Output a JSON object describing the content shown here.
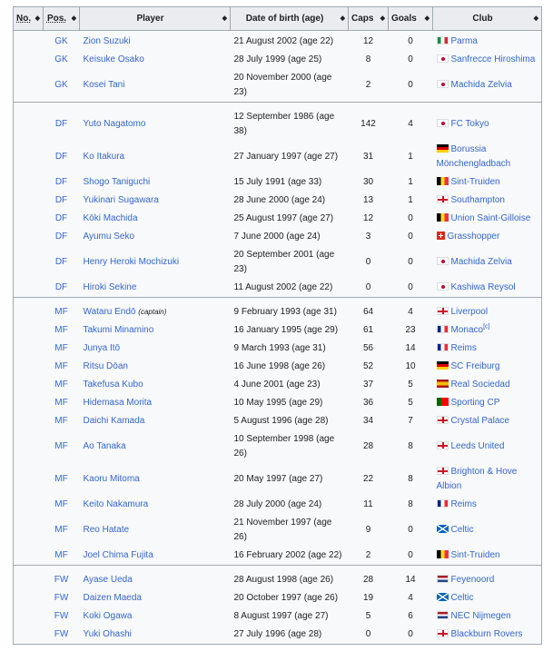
{
  "headers": {
    "no": "No.",
    "pos": "Pos.",
    "player": "Player",
    "dob": "Date of birth (age)",
    "caps": "Caps",
    "goals": "Goals",
    "club": "Club",
    "sort_icon": "sort-icon"
  },
  "rows": [
    {
      "pos": "GK",
      "player": "Zion Suzuki",
      "dob": "21 August 2002 (age 22)",
      "caps": "12",
      "goals": "0",
      "flag": "it",
      "club": "Parma",
      "group_start": true
    },
    {
      "pos": "GK",
      "player": "Keisuke Osako",
      "dob": "28 July 1999 (age 25)",
      "caps": "8",
      "goals": "0",
      "flag": "jp",
      "club": "Sanfrecce Hiroshima"
    },
    {
      "pos": "GK",
      "player": "Kosei Tani",
      "dob": "20 November 2000 (age 23)",
      "caps": "2",
      "goals": "0",
      "flag": "jp",
      "club": "Machida Zelvia"
    },
    {
      "pos": "DF",
      "player": "Yuto Nagatomo",
      "dob": "12 September 1986 (age 38)",
      "caps": "142",
      "goals": "4",
      "flag": "jp",
      "club": "FC Tokyo",
      "group_start": true
    },
    {
      "pos": "DF",
      "player": "Ko Itakura",
      "dob": "27 January 1997 (age 27)",
      "caps": "31",
      "goals": "1",
      "flag": "de",
      "club": "Borussia Mönchengladbach"
    },
    {
      "pos": "DF",
      "player": "Shogo Taniguchi",
      "dob": "15 July 1991 (age 33)",
      "caps": "30",
      "goals": "1",
      "flag": "be",
      "club": "Sint-Truiden"
    },
    {
      "pos": "DF",
      "player": "Yukinari Sugawara",
      "dob": "28 June 2000 (age 24)",
      "caps": "13",
      "goals": "1",
      "flag": "en",
      "club": "Southampton"
    },
    {
      "pos": "DF",
      "player": "Kōki Machida",
      "dob": "25 August 1997 (age 27)",
      "caps": "12",
      "goals": "0",
      "flag": "be",
      "club": "Union Saint-Gilloise"
    },
    {
      "pos": "DF",
      "player": "Ayumu Seko",
      "dob": "7 June 2000 (age 24)",
      "caps": "3",
      "goals": "0",
      "flag": "ch",
      "club": "Grasshopper"
    },
    {
      "pos": "DF",
      "player": "Henry Heroki Mochizuki",
      "dob": "20 September 2001 (age 23)",
      "caps": "0",
      "goals": "0",
      "flag": "jp",
      "club": "Machida Zelvia"
    },
    {
      "pos": "DF",
      "player": "Hiroki Sekine",
      "dob": "11 August 2002 (age 22)",
      "caps": "0",
      "goals": "0",
      "flag": "jp",
      "club": "Kashiwa Reysol"
    },
    {
      "pos": "MF",
      "player": "Wataru Endō",
      "note": "(captain)",
      "dob": "9 February 1993 (age 31)",
      "caps": "64",
      "goals": "4",
      "flag": "en",
      "club": "Liverpool",
      "group_start": true
    },
    {
      "pos": "MF",
      "player": "Takumi Minamino",
      "dob": "16 January 1995 (age 29)",
      "caps": "61",
      "goals": "23",
      "flag": "fr",
      "club": "Monaco",
      "ref": "[c]"
    },
    {
      "pos": "MF",
      "player": "Junya Itō",
      "dob": "9 March 1993 (age 31)",
      "caps": "56",
      "goals": "14",
      "flag": "fr",
      "club": "Reims"
    },
    {
      "pos": "MF",
      "player": "Ritsu Dōan",
      "dob": "16 June 1998 (age 26)",
      "caps": "52",
      "goals": "10",
      "flag": "de",
      "club": "SC Freiburg"
    },
    {
      "pos": "MF",
      "player": "Takefusa Kubo",
      "dob": "4 June 2001 (age 23)",
      "caps": "37",
      "goals": "5",
      "flag": "es",
      "club": "Real Sociedad"
    },
    {
      "pos": "MF",
      "player": "Hidemasa Morita",
      "dob": "10 May 1995 (age 29)",
      "caps": "36",
      "goals": "5",
      "flag": "pt",
      "club": "Sporting CP"
    },
    {
      "pos": "MF",
      "player": "Daichi Kamada",
      "dob": "5 August 1996 (age 28)",
      "caps": "34",
      "goals": "7",
      "flag": "en",
      "club": "Crystal Palace"
    },
    {
      "pos": "MF",
      "player": "Ao Tanaka",
      "dob": "10 September 1998 (age 26)",
      "caps": "28",
      "goals": "8",
      "flag": "en",
      "club": "Leeds United"
    },
    {
      "pos": "MF",
      "player": "Kaoru Mitoma",
      "dob": "20 May 1997 (age 27)",
      "caps": "22",
      "goals": "8",
      "flag": "en",
      "club": "Brighton & Hove Albion"
    },
    {
      "pos": "MF",
      "player": "Keito Nakamura",
      "dob": "28 July 2000 (age 24)",
      "caps": "11",
      "goals": "8",
      "flag": "fr",
      "club": "Reims"
    },
    {
      "pos": "MF",
      "player": "Reo Hatate",
      "dob": "21 November 1997 (age 26)",
      "caps": "9",
      "goals": "0",
      "flag": "sco",
      "club": "Celtic"
    },
    {
      "pos": "MF",
      "player": "Joel Chima Fujita",
      "dob": "16 February 2002 (age 22)",
      "caps": "2",
      "goals": "0",
      "flag": "be",
      "club": "Sint-Truiden"
    },
    {
      "pos": "FW",
      "player": "Ayase Ueda",
      "dob": "28 August 1998 (age 26)",
      "caps": "28",
      "goals": "14",
      "flag": "nl",
      "club": "Feyenoord",
      "group_start": true
    },
    {
      "pos": "FW",
      "player": "Daizen Maeda",
      "dob": "20 October 1997 (age 26)",
      "caps": "19",
      "goals": "4",
      "flag": "sco",
      "club": "Celtic"
    },
    {
      "pos": "FW",
      "player": "Koki Ogawa",
      "dob": "8 August 1997 (age 27)",
      "caps": "5",
      "goals": "6",
      "flag": "nl",
      "club": "NEC Nijmegen"
    },
    {
      "pos": "FW",
      "player": "Yuki Ohashi",
      "dob": "27 July 1996 (age 28)",
      "caps": "0",
      "goals": "0",
      "flag": "en",
      "club": "Blackburn Rovers"
    }
  ]
}
